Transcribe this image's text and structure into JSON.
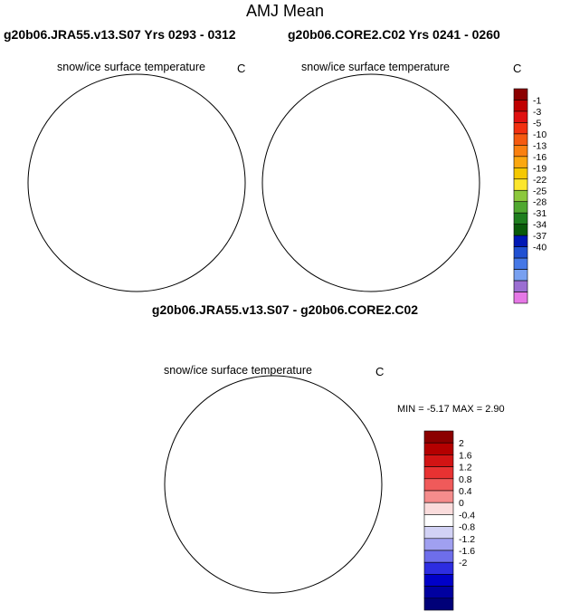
{
  "title": "AMJ Mean",
  "panels": [
    {
      "run_label": "g20b06.JRA55.v13.S07  Yrs 0293 - 0312",
      "variable": "snow/ice surface temperature",
      "units": "C"
    },
    {
      "run_label": "g20b06.CORE2.C02  Yrs 0241 - 0260",
      "variable": "snow/ice surface temperature",
      "units": "C"
    }
  ],
  "difference_panel": {
    "run_label": "g20b06.JRA55.v13.S07 - g20b06.CORE2.C02",
    "variable": "snow/ice surface temperature",
    "units": "C",
    "min_max_text": "MIN =  -5.17 MAX =   2.90"
  },
  "colorbar_main": {
    "colors": [
      "#8c0000",
      "#c00000",
      "#e01010",
      "#f23010",
      "#f55a10",
      "#fa8010",
      "#fba710",
      "#f5c800",
      "#fce62c",
      "#8cc83c",
      "#50a830",
      "#1e7e1e",
      "#0a5a0a",
      "#0018b4",
      "#2050d2",
      "#4678e6",
      "#78a0f0",
      "#9b6ed2",
      "#e678e6"
    ],
    "labels": [
      "-1",
      "-3",
      "-5",
      "-10",
      "-13",
      "-16",
      "-19",
      "-22",
      "-25",
      "-28",
      "-31",
      "-34",
      "-37",
      "-40"
    ]
  },
  "colorbar_diff": {
    "colors": [
      "#8b0000",
      "#b40000",
      "#d21414",
      "#e83232",
      "#f05a5a",
      "#f58c8c",
      "#fadcdc",
      "#ffffff",
      "#d2d2f5",
      "#a0a0f0",
      "#6e6eeb",
      "#2d2de1",
      "#0000c8",
      "#0000a0",
      "#000078"
    ],
    "labels": [
      "2",
      "1.6",
      "1.2",
      "0.8",
      "0.4",
      "0",
      "-0.4",
      "-0.8",
      "-1.2",
      "-1.6",
      "-2"
    ]
  }
}
